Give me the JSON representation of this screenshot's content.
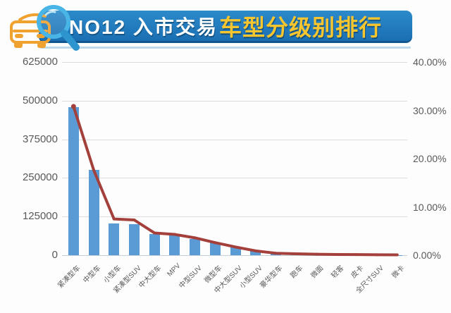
{
  "header": {
    "title_prefix": "NO12 入市交易",
    "title_highlight": "车型分级别排行",
    "banner_color": "#1d74b6",
    "highlight_color": "#f7c52e",
    "icon": "car-magnifier-icon"
  },
  "chart_data": {
    "type": "bar",
    "title": "NO12 入市交易车型分级别排行",
    "categories": [
      "紧凑型车",
      "中型车",
      "小型车",
      "紧凑型SUV",
      "中大型车",
      "MPV",
      "中型SUV",
      "微型车",
      "中大型SUV",
      "小型SUV",
      "豪华型车",
      "跑车",
      "微面",
      "轻客",
      "皮卡",
      "全尺寸SUV",
      "微卡"
    ],
    "series": [
      {
        "type": "bar",
        "axis": "left",
        "color": "#5b9bd5",
        "values": [
          480000,
          275000,
          103000,
          100000,
          69000,
          64000,
          53000,
          40000,
          28000,
          16000,
          7000,
          4000,
          3000,
          2500,
          2000,
          1500,
          1000
        ]
      },
      {
        "type": "line",
        "axis": "right",
        "color": "#a4403c",
        "values": [
          30.8,
          17.6,
          7.5,
          7.3,
          4.6,
          4.3,
          3.6,
          2.6,
          1.7,
          0.9,
          0.4,
          0.3,
          0.2,
          0.15,
          0.12,
          0.1,
          0.08
        ]
      }
    ],
    "left_axis": {
      "min": 0,
      "max": 625000,
      "ticks": [
        "625000",
        "500000",
        "375000",
        "250000",
        "125000",
        "0"
      ]
    },
    "right_axis": {
      "min": 0,
      "max": 40,
      "ticks": [
        "40.00%",
        "30.00%",
        "20.00%",
        "10.00%",
        "0.00%"
      ]
    },
    "grid": true,
    "legend_position": "none"
  }
}
